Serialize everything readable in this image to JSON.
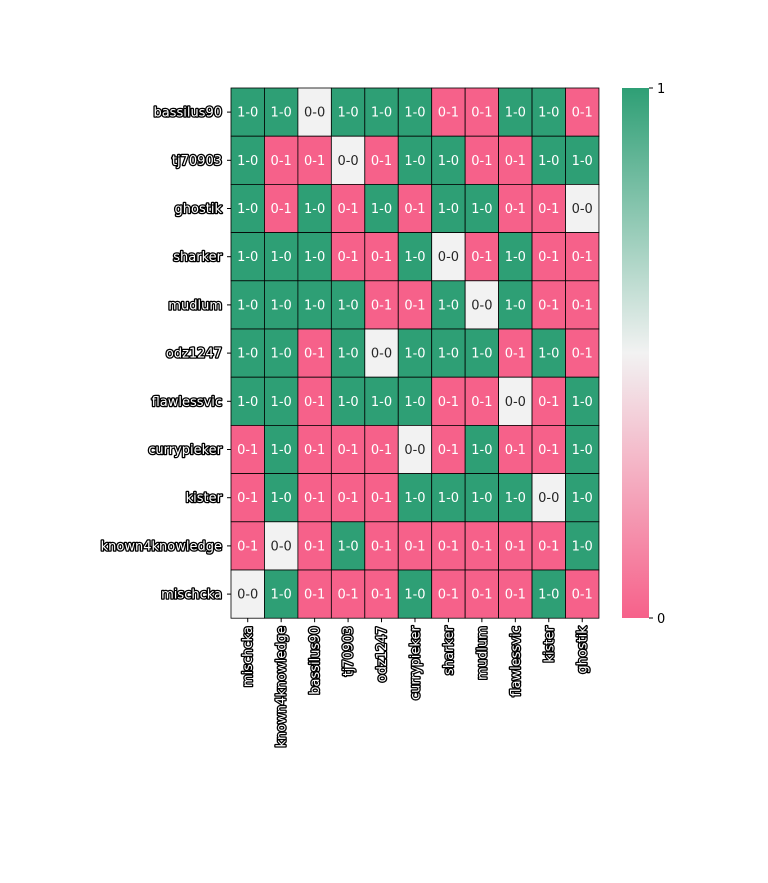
{
  "chart_data": {
    "type": "heatmap",
    "title": "",
    "xlabel": "",
    "ylabel": "",
    "rows": [
      "bassilus90",
      "tj70903",
      "ghostik",
      "sharker",
      "mudlum",
      "odz1247",
      "flawlessvic",
      "currypieker",
      "kister",
      "known4knowledge",
      "mischcka"
    ],
    "columns": [
      "mischcka",
      "known4knowledge",
      "bassilus90",
      "tj70903",
      "odz1247",
      "currypieker",
      "sharker",
      "mudlum",
      "flawlessvic",
      "kister",
      "ghostik"
    ],
    "values": [
      [
        1,
        1,
        0.5,
        1,
        1,
        1,
        0,
        0,
        1,
        1,
        0
      ],
      [
        1,
        0,
        0,
        0.5,
        0,
        1,
        1,
        0,
        0,
        1,
        1
      ],
      [
        1,
        0,
        1,
        0,
        1,
        0,
        1,
        1,
        0,
        0,
        0.5
      ],
      [
        1,
        1,
        1,
        0,
        0,
        1,
        0.5,
        0,
        1,
        0,
        0
      ],
      [
        1,
        1,
        1,
        1,
        0,
        0,
        1,
        0.5,
        1,
        0,
        0
      ],
      [
        1,
        1,
        0,
        1,
        0.5,
        1,
        1,
        1,
        0,
        1,
        0
      ],
      [
        1,
        1,
        0,
        1,
        1,
        1,
        0,
        0,
        0.5,
        0,
        1
      ],
      [
        0,
        1,
        0,
        0,
        0,
        0.5,
        0,
        1,
        0,
        0,
        1
      ],
      [
        0,
        1,
        0,
        0,
        0,
        1,
        1,
        1,
        1,
        0.5,
        1
      ],
      [
        0,
        0.5,
        0,
        1,
        0,
        0,
        0,
        0,
        0,
        0,
        1
      ],
      [
        0.5,
        1,
        0,
        0,
        0,
        1,
        0,
        0,
        0,
        1,
        0
      ]
    ],
    "annotations": [
      [
        "1-0",
        "1-0",
        "0-0",
        "1-0",
        "1-0",
        "1-0",
        "0-1",
        "0-1",
        "1-0",
        "1-0",
        "0-1"
      ],
      [
        "1-0",
        "0-1",
        "0-1",
        "0-0",
        "0-1",
        "1-0",
        "1-0",
        "0-1",
        "0-1",
        "1-0",
        "1-0"
      ],
      [
        "1-0",
        "0-1",
        "1-0",
        "0-1",
        "1-0",
        "0-1",
        "1-0",
        "1-0",
        "0-1",
        "0-1",
        "0-0"
      ],
      [
        "1-0",
        "1-0",
        "1-0",
        "0-1",
        "0-1",
        "1-0",
        "0-0",
        "0-1",
        "1-0",
        "0-1",
        "0-1"
      ],
      [
        "1-0",
        "1-0",
        "1-0",
        "1-0",
        "0-1",
        "0-1",
        "1-0",
        "0-0",
        "1-0",
        "0-1",
        "0-1"
      ],
      [
        "1-0",
        "1-0",
        "0-1",
        "1-0",
        "0-0",
        "1-0",
        "1-0",
        "1-0",
        "0-1",
        "1-0",
        "0-1"
      ],
      [
        "1-0",
        "1-0",
        "0-1",
        "1-0",
        "1-0",
        "1-0",
        "0-1",
        "0-1",
        "0-0",
        "0-1",
        "1-0"
      ],
      [
        "0-1",
        "1-0",
        "0-1",
        "0-1",
        "0-1",
        "0-0",
        "0-1",
        "1-0",
        "0-1",
        "0-1",
        "1-0"
      ],
      [
        "0-1",
        "1-0",
        "0-1",
        "0-1",
        "0-1",
        "1-0",
        "1-0",
        "1-0",
        "1-0",
        "0-0",
        "1-0"
      ],
      [
        "0-1",
        "0-0",
        "0-1",
        "1-0",
        "0-1",
        "0-1",
        "0-1",
        "0-1",
        "0-1",
        "0-1",
        "1-0"
      ],
      [
        "0-0",
        "1-0",
        "0-1",
        "0-1",
        "0-1",
        "1-0",
        "0-1",
        "0-1",
        "0-1",
        "1-0",
        "0-1"
      ]
    ],
    "colorbar": {
      "min": 0,
      "max": 1,
      "tick_labels": [
        "1",
        "0"
      ],
      "low_color": "#f6618a",
      "mid_color": "#f2f2f2",
      "high_color": "#2e9f75"
    },
    "legend": "colorbar-right",
    "grid": false
  }
}
